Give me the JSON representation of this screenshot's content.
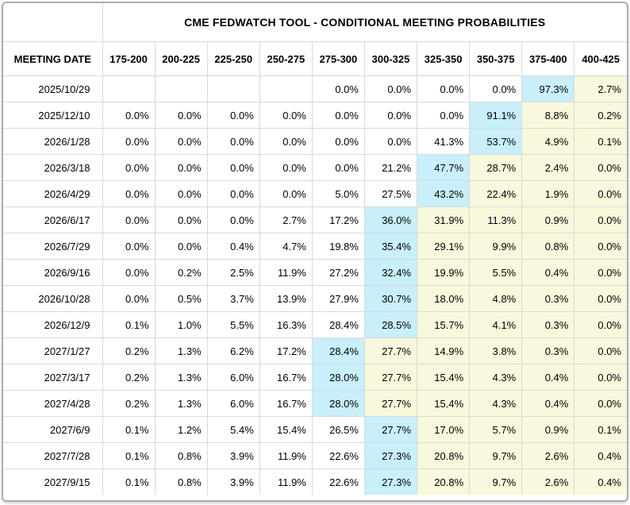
{
  "chart_data": {
    "type": "table",
    "title": "CME FEDWATCH TOOL - CONDITIONAL MEETING PROBABILITIES",
    "columns": [
      "MEETING DATE",
      "175-200",
      "200-225",
      "225-250",
      "250-275",
      "275-300",
      "300-325",
      "325-350",
      "350-375",
      "375-400",
      "400-425"
    ],
    "rows": [
      {
        "date": "2025/10/29",
        "values": [
          "",
          "",
          "",
          "",
          "0.0%",
          "0.0%",
          "0.0%",
          "0.0%",
          "97.3%",
          "2.7%"
        ],
        "max_col_index": 8
      },
      {
        "date": "2025/12/10",
        "values": [
          "0.0%",
          "0.0%",
          "0.0%",
          "0.0%",
          "0.0%",
          "0.0%",
          "0.0%",
          "91.1%",
          "8.8%",
          "0.2%"
        ],
        "max_col_index": 7
      },
      {
        "date": "2026/1/28",
        "values": [
          "0.0%",
          "0.0%",
          "0.0%",
          "0.0%",
          "0.0%",
          "0.0%",
          "41.3%",
          "53.7%",
          "4.9%",
          "0.1%"
        ],
        "max_col_index": 7
      },
      {
        "date": "2026/3/18",
        "values": [
          "0.0%",
          "0.0%",
          "0.0%",
          "0.0%",
          "0.0%",
          "21.2%",
          "47.7%",
          "28.7%",
          "2.4%",
          "0.0%"
        ],
        "max_col_index": 6
      },
      {
        "date": "2026/4/29",
        "values": [
          "0.0%",
          "0.0%",
          "0.0%",
          "0.0%",
          "5.0%",
          "27.5%",
          "43.2%",
          "22.4%",
          "1.9%",
          "0.0%"
        ],
        "max_col_index": 6
      },
      {
        "date": "2026/6/17",
        "values": [
          "0.0%",
          "0.0%",
          "0.0%",
          "2.7%",
          "17.2%",
          "36.0%",
          "31.9%",
          "11.3%",
          "0.9%",
          "0.0%"
        ],
        "max_col_index": 5
      },
      {
        "date": "2026/7/29",
        "values": [
          "0.0%",
          "0.0%",
          "0.4%",
          "4.7%",
          "19.8%",
          "35.4%",
          "29.1%",
          "9.9%",
          "0.8%",
          "0.0%"
        ],
        "max_col_index": 5
      },
      {
        "date": "2026/9/16",
        "values": [
          "0.0%",
          "0.2%",
          "2.5%",
          "11.9%",
          "27.2%",
          "32.4%",
          "19.9%",
          "5.5%",
          "0.4%",
          "0.0%"
        ],
        "max_col_index": 5
      },
      {
        "date": "2026/10/28",
        "values": [
          "0.0%",
          "0.5%",
          "3.7%",
          "13.9%",
          "27.9%",
          "30.7%",
          "18.0%",
          "4.8%",
          "0.3%",
          "0.0%"
        ],
        "max_col_index": 5
      },
      {
        "date": "2026/12/9",
        "values": [
          "0.1%",
          "1.0%",
          "5.5%",
          "16.3%",
          "28.4%",
          "28.5%",
          "15.7%",
          "4.1%",
          "0.3%",
          "0.0%"
        ],
        "max_col_index": 5
      },
      {
        "date": "2027/1/27",
        "values": [
          "0.2%",
          "1.3%",
          "6.2%",
          "17.2%",
          "28.4%",
          "27.7%",
          "14.9%",
          "3.8%",
          "0.3%",
          "0.0%"
        ],
        "max_col_index": 4
      },
      {
        "date": "2027/3/17",
        "values": [
          "0.2%",
          "1.3%",
          "6.0%",
          "16.7%",
          "28.0%",
          "27.7%",
          "15.4%",
          "4.3%",
          "0.4%",
          "0.0%"
        ],
        "max_col_index": 4
      },
      {
        "date": "2027/4/28",
        "values": [
          "0.2%",
          "1.3%",
          "6.0%",
          "16.7%",
          "28.0%",
          "27.7%",
          "15.4%",
          "4.3%",
          "0.4%",
          "0.0%"
        ],
        "max_col_index": 4
      },
      {
        "date": "2027/6/9",
        "values": [
          "0.1%",
          "1.2%",
          "5.4%",
          "15.4%",
          "26.5%",
          "27.7%",
          "17.0%",
          "5.7%",
          "0.9%",
          "0.1%"
        ],
        "max_col_index": 5
      },
      {
        "date": "2027/7/28",
        "values": [
          "0.1%",
          "0.8%",
          "3.9%",
          "11.9%",
          "22.6%",
          "27.3%",
          "20.8%",
          "9.7%",
          "2.6%",
          "0.4%"
        ],
        "max_col_index": 5
      },
      {
        "date": "2027/9/15",
        "values": [
          "0.1%",
          "0.8%",
          "3.9%",
          "11.9%",
          "22.6%",
          "27.3%",
          "20.8%",
          "9.7%",
          "2.6%",
          "0.4%"
        ],
        "max_col_index": 5
      }
    ],
    "highlight_colors": {
      "max_probability_cell": "#c8effa",
      "cells_right_of_max": "#f8f8dc"
    },
    "layout": {
      "grid": "on",
      "gridline_color": "#d9d9d9",
      "outer_border_color": "#aeaeae",
      "legend": "none",
      "value_alignment": "right",
      "header_alignment": "center"
    }
  }
}
